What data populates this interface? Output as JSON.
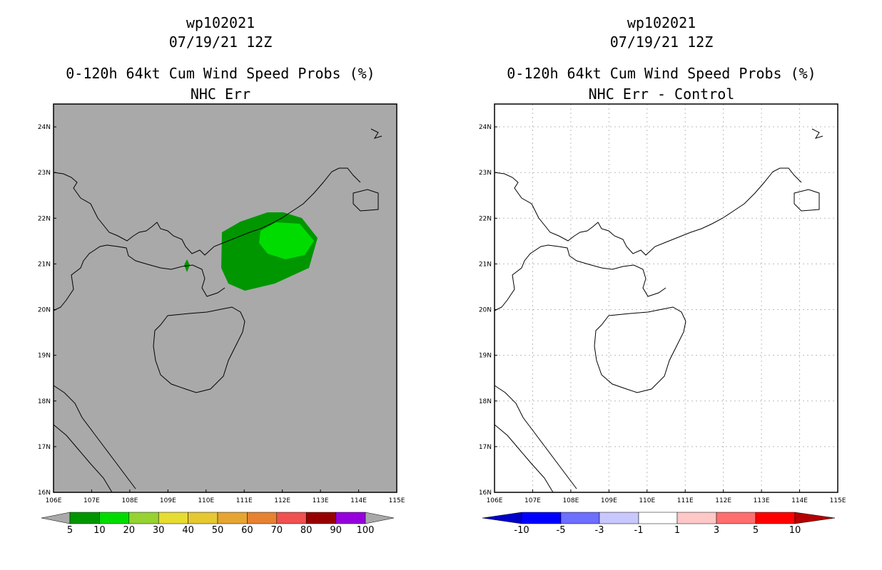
{
  "left_panel": {
    "storm_id": "wp102021",
    "datetime": "07/19/21 12Z",
    "product": "0-120h 64kt Cum Wind Speed Probs (%)",
    "subtitle": "NHC Err",
    "background_color": "#a9a9a9",
    "colorbar": {
      "labels": [
        "5",
        "10",
        "20",
        "30",
        "40",
        "50",
        "60",
        "70",
        "80",
        "90",
        "100"
      ],
      "colors": [
        "#009600",
        "#00dc00",
        "#96d232",
        "#e6dc32",
        "#e6c832",
        "#e6a532",
        "#e68232",
        "#f05050",
        "#960000",
        "#9600dc"
      ]
    }
  },
  "right_panel": {
    "storm_id": "wp102021",
    "datetime": "07/19/21 12Z",
    "product": "0-120h 64kt Cum Wind Speed Probs (%)",
    "subtitle": "NHC Err - Control",
    "colorbar": {
      "labels": [
        "-10",
        "-5",
        "-3",
        "-1",
        "1",
        "3",
        "5",
        "10"
      ],
      "colors": [
        "#0000c8",
        "#0000ff",
        "#6e6eff",
        "#c8c8ff",
        "#ffffff",
        "#ffc8c8",
        "#ff6e6e",
        "#ff0000",
        "#b40000"
      ]
    }
  },
  "map": {
    "lon_range": [
      106,
      115
    ],
    "lat_range": [
      16,
      24.5
    ],
    "lon_labels": [
      "106E",
      "107E",
      "108E",
      "109E",
      "110E",
      "111E",
      "112E",
      "113E",
      "114E",
      "115E"
    ],
    "lat_labels": [
      "16N",
      "17N",
      "18N",
      "19N",
      "20N",
      "21N",
      "22N",
      "23N",
      "24N"
    ]
  },
  "probability_regions": [
    {
      "level": "5-10%",
      "color": "#009600",
      "description": "outer swath"
    },
    {
      "level": "10-20%",
      "color": "#00dc00",
      "description": "inner core"
    }
  ]
}
